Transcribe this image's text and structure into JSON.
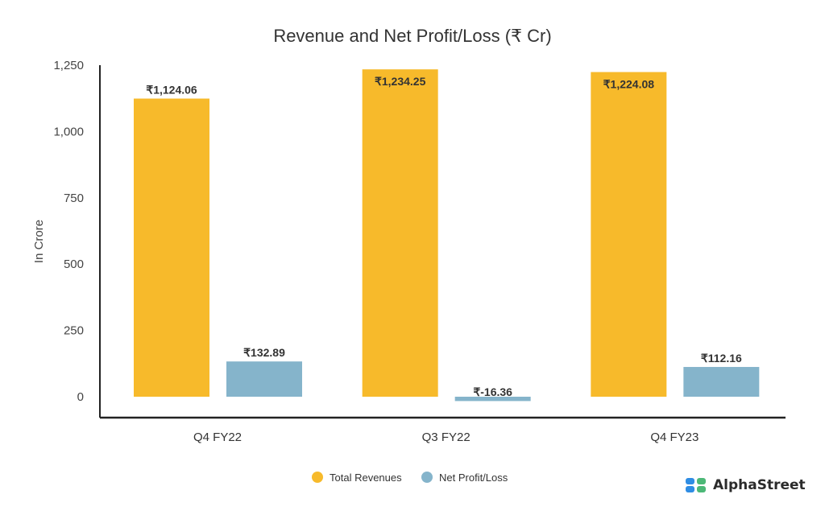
{
  "chart_data": {
    "type": "bar",
    "title": "Revenue and Net Profit/Loss (₹ Cr)",
    "xlabel": "",
    "ylabel": "In Crore",
    "ylim": [
      0,
      1250
    ],
    "yticks": [
      0,
      250,
      500,
      750,
      1000,
      1250
    ],
    "ytick_labels": [
      "0",
      "250",
      "500",
      "750",
      "1,000",
      "1,250"
    ],
    "categories": [
      "Q4 FY22",
      "Q3 FY22",
      "Q4 FY23"
    ],
    "series": [
      {
        "name": "Total Revenues",
        "color": "#F7BA2B",
        "values": [
          1124.06,
          1234.25,
          1224.08
        ],
        "labels": [
          "₹1,124.06",
          "₹1,234.25",
          "₹1,224.08"
        ]
      },
      {
        "name": "Net Profit/Loss",
        "color": "#85B4CB",
        "values": [
          132.89,
          -16.36,
          112.16
        ],
        "labels": [
          "₹132.89",
          "₹-16.36",
          "₹112.16"
        ]
      }
    ],
    "grid": false,
    "legend": "bottom-center"
  },
  "brand": {
    "name": "AlphaStreet",
    "logo_colors": [
      "#2F8DE4",
      "#4CB877"
    ]
  }
}
